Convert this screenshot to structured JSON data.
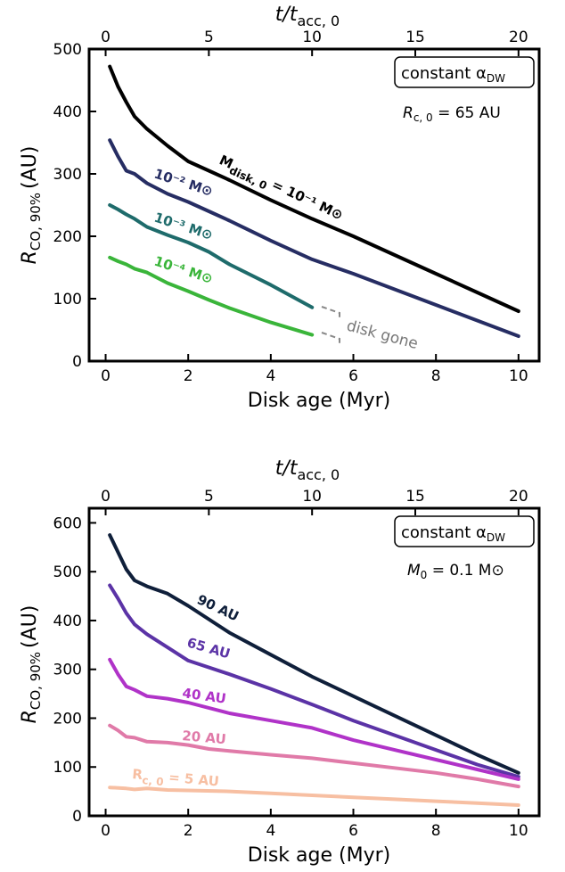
{
  "chart_data": [
    {
      "type": "line",
      "xlabel": "Disk age (Myr)",
      "ylabel_main": "R",
      "ylabel_sub": "CO, 90%",
      "ylabel_unit": "(AU)",
      "top_axis_label": {
        "main": "t/t",
        "sub": "acc, 0"
      },
      "xlim": [
        -0.4,
        10.5
      ],
      "ylim": [
        0,
        500
      ],
      "xticks": [
        0,
        2,
        4,
        6,
        8,
        10
      ],
      "yticks": [
        0,
        100,
        200,
        300,
        400,
        500
      ],
      "top_ticks": [
        0,
        5,
        10,
        15,
        20
      ],
      "top_scale": 2,
      "legend_box": "constant α",
      "legend_box_sub": "DW",
      "annotation_main": "R",
      "annotation_sub": "c, 0",
      "annotation_rest": " = 65 AU",
      "gone_label": "disk gone",
      "series": [
        {
          "name": "M",
          "name_sub": "disk, 0",
          "name_rest": " = 10⁻¹ M⊙",
          "color": "#000000",
          "x": [
            0.1,
            0.3,
            0.5,
            0.7,
            1.0,
            1.5,
            2.0,
            2.5,
            3.0,
            4.0,
            5.0,
            6.0,
            7.0,
            8.0,
            9.0,
            10.0
          ],
          "y": [
            472,
            440,
            415,
            392,
            372,
            345,
            320,
            305,
            290,
            258,
            228,
            200,
            170,
            140,
            110,
            80
          ]
        },
        {
          "name": "10⁻² M⊙",
          "color": "#262d63",
          "x": [
            0.1,
            0.3,
            0.5,
            0.7,
            1.0,
            1.5,
            2.0,
            2.5,
            3.0,
            4.0,
            5.0,
            6.0,
            7.0,
            8.0,
            9.0,
            10.0
          ],
          "y": [
            354,
            328,
            305,
            300,
            285,
            268,
            255,
            240,
            225,
            193,
            163,
            140,
            115,
            90,
            65,
            40
          ]
        },
        {
          "name": "10⁻³ M⊙",
          "color": "#1e6b6b",
          "x": [
            0.1,
            0.3,
            0.5,
            0.7,
            1.0,
            1.5,
            2.0,
            2.5,
            3.0,
            4.0,
            5.0
          ],
          "y": [
            250,
            243,
            235,
            228,
            215,
            202,
            190,
            175,
            155,
            122,
            86
          ]
        },
        {
          "name": "10⁻⁴ M⊙",
          "color": "#3ab53a",
          "x": [
            0.1,
            0.3,
            0.5,
            0.7,
            1.0,
            1.5,
            2.0,
            2.5,
            3.0,
            4.0,
            5.0
          ],
          "y": [
            166,
            160,
            155,
            148,
            142,
            125,
            112,
            98,
            85,
            62,
            42
          ]
        }
      ]
    },
    {
      "type": "line",
      "xlabel": "Disk age (Myr)",
      "ylabel_main": "R",
      "ylabel_sub": "CO, 90%",
      "ylabel_unit": "(AU)",
      "top_axis_label": {
        "main": "t/t",
        "sub": "acc, 0"
      },
      "xlim": [
        -0.4,
        10.5
      ],
      "ylim": [
        0,
        630
      ],
      "xticks": [
        0,
        2,
        4,
        6,
        8,
        10
      ],
      "yticks": [
        0,
        100,
        200,
        300,
        400,
        500,
        600
      ],
      "top_ticks": [
        0,
        5,
        10,
        15,
        20
      ],
      "top_scale": 2,
      "legend_box": "constant α",
      "legend_box_sub": "DW",
      "annotation_main": "M",
      "annotation_sub": "0",
      "annotation_rest": " = 0.1 M⊙",
      "series": [
        {
          "name": "90 AU",
          "color": "#0f1f3a",
          "x": [
            0.1,
            0.3,
            0.5,
            0.7,
            1.0,
            1.5,
            2.0,
            3.0,
            4.0,
            5.0,
            6.0,
            7.0,
            8.0,
            9.0,
            10.0
          ],
          "y": [
            575,
            540,
            505,
            482,
            470,
            455,
            430,
            375,
            330,
            285,
            245,
            205,
            165,
            125,
            88
          ]
        },
        {
          "name": "65 AU",
          "color": "#5b33a6",
          "x": [
            0.1,
            0.3,
            0.5,
            0.7,
            1.0,
            1.5,
            2.0,
            3.0,
            4.0,
            5.0,
            6.0,
            7.0,
            8.0,
            9.0,
            10.0
          ],
          "y": [
            472,
            445,
            415,
            392,
            372,
            345,
            318,
            290,
            260,
            228,
            195,
            165,
            135,
            105,
            80
          ]
        },
        {
          "name": "40 AU",
          "color": "#b033c8",
          "x": [
            0.1,
            0.3,
            0.5,
            0.7,
            1.0,
            1.5,
            2.0,
            3.0,
            4.0,
            5.0,
            6.0,
            7.0,
            8.0,
            9.0,
            10.0
          ],
          "y": [
            320,
            290,
            265,
            258,
            245,
            240,
            232,
            210,
            195,
            180,
            155,
            135,
            115,
            95,
            75
          ]
        },
        {
          "name": "20 AU",
          "color": "#e07aa8",
          "x": [
            0.1,
            0.3,
            0.5,
            0.7,
            1.0,
            1.5,
            2.0,
            2.5,
            3.0,
            4.0,
            5.0,
            6.0,
            7.0,
            8.0,
            9.0,
            10.0
          ],
          "y": [
            185,
            175,
            162,
            160,
            152,
            150,
            145,
            137,
            133,
            125,
            118,
            108,
            98,
            88,
            75,
            60
          ]
        },
        {
          "name": "R",
          "name_sub": "c, 0",
          "name_rest": " = 5 AU",
          "color": "#f7bfa2",
          "x": [
            0.1,
            0.5,
            0.7,
            1.0,
            1.5,
            2.0,
            3.0,
            4.0,
            5.0,
            6.0,
            7.0,
            8.0,
            9.0,
            10.0
          ],
          "y": [
            58,
            56,
            54,
            56,
            53,
            52,
            50,
            46,
            42,
            38,
            34,
            30,
            26,
            22
          ]
        }
      ]
    }
  ]
}
